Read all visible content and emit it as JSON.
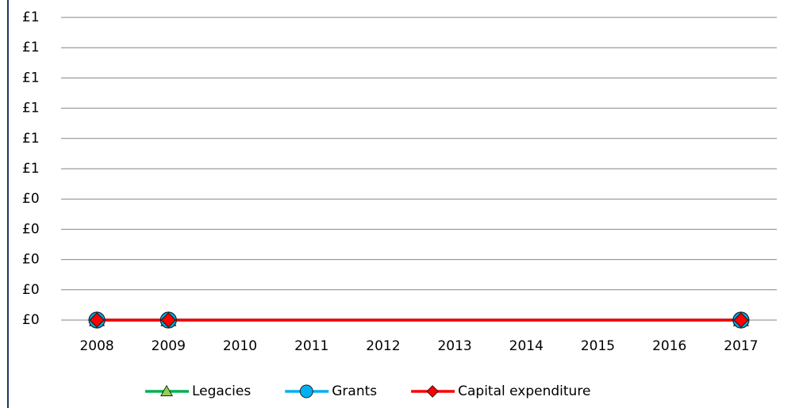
{
  "chart_data": {
    "type": "line",
    "x": [
      2008,
      2009,
      2017
    ],
    "xlim": [
      2007.5,
      2017.5
    ],
    "xticks": [
      2008,
      2009,
      2010,
      2011,
      2012,
      2013,
      2014,
      2015,
      2016,
      2017
    ],
    "ylim": [
      0,
      1
    ],
    "yticks": [
      {
        "value": 0,
        "label": "£0"
      },
      {
        "value": 0.1,
        "label": "£0"
      },
      {
        "value": 0.2,
        "label": "£0"
      },
      {
        "value": 0.3,
        "label": "£0"
      },
      {
        "value": 0.4,
        "label": "£0"
      },
      {
        "value": 0.5,
        "label": "£1"
      },
      {
        "value": 0.6,
        "label": "£1"
      },
      {
        "value": 0.7,
        "label": "£1"
      },
      {
        "value": 0.8,
        "label": "£1"
      },
      {
        "value": 0.9,
        "label": "£1"
      },
      {
        "value": 1.0,
        "label": "£1"
      }
    ],
    "grid": true,
    "legend": "bottom",
    "series": [
      {
        "name": "Legacies",
        "color": "#00b050",
        "marker": "triangle",
        "marker_color": "#92d050",
        "values": [
          0,
          0,
          0
        ]
      },
      {
        "name": "Grants",
        "color": "#00b0f0",
        "marker": "circle",
        "marker_color": "#00b0f0",
        "values": [
          0,
          0,
          0
        ]
      },
      {
        "name": "Capital expenditure",
        "color": "#ff0000",
        "marker": "diamond",
        "marker_color": "#ff0000",
        "values": [
          0,
          0,
          0
        ]
      }
    ]
  }
}
